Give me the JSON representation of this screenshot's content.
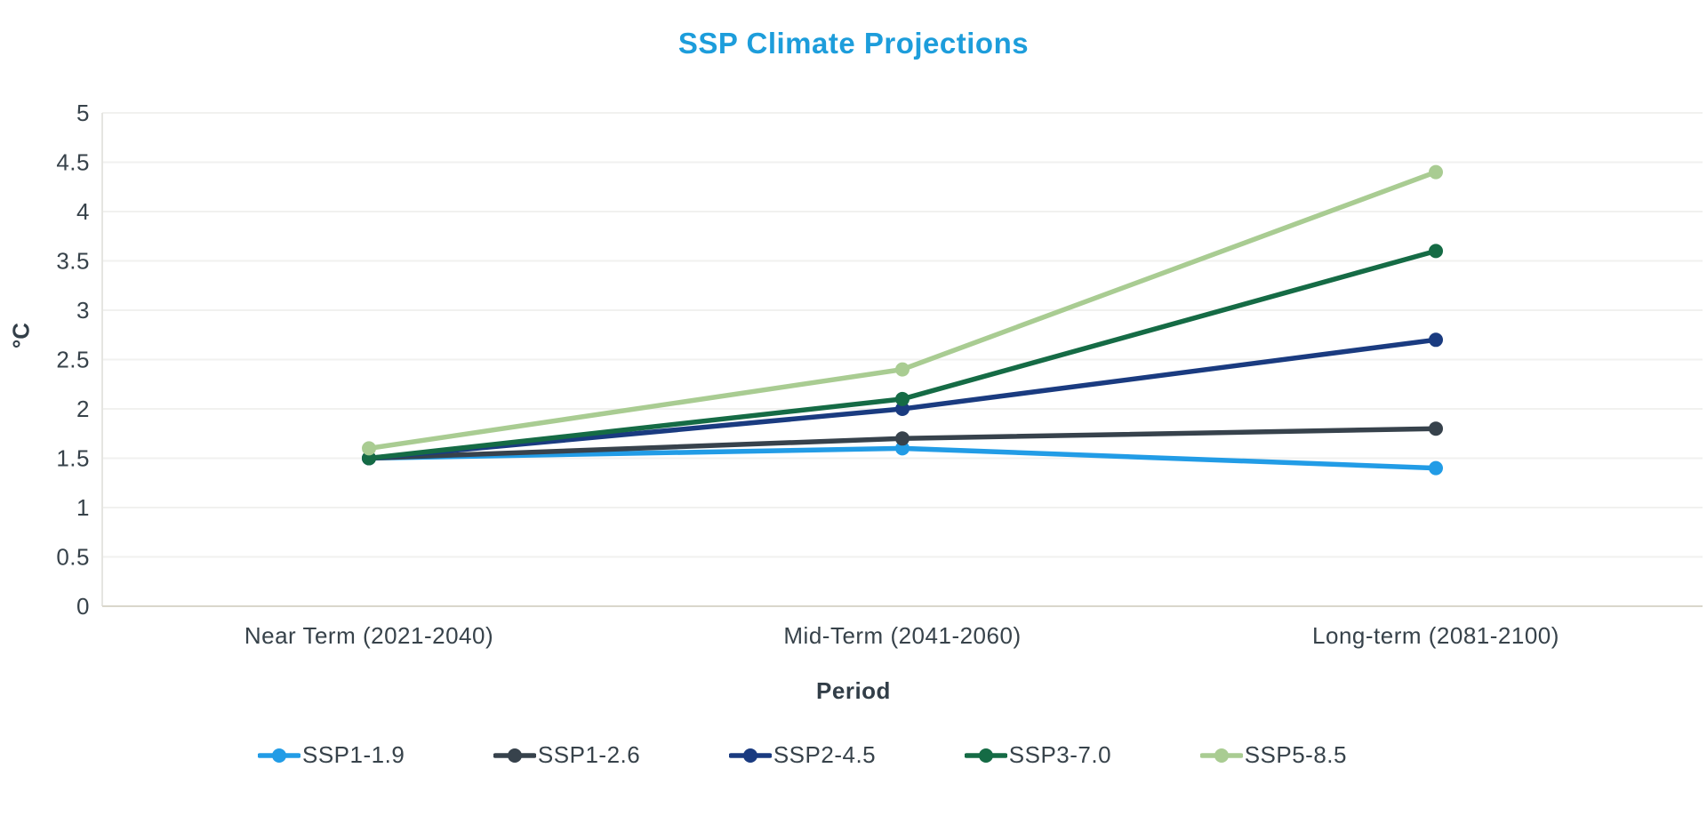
{
  "page": {
    "title": "SSP Climate Projections"
  },
  "chart_data": {
    "type": "line",
    "title": "SSP Climate Projections",
    "title_color": "#1d9ddb",
    "xlabel": "Period",
    "ylabel": "°C",
    "categories": [
      "Near Term (2021-2040)",
      "Mid-Term (2041-2060)",
      "Long-term (2081-2100)"
    ],
    "series": [
      {
        "name": "SSP1-1.9",
        "color": "#229ce6",
        "values": [
          1.5,
          1.6,
          1.4
        ]
      },
      {
        "name": "SSP1-2.6",
        "color": "#37424c",
        "values": [
          1.5,
          1.7,
          1.8
        ]
      },
      {
        "name": "SSP2-4.5",
        "color": "#1a3b80",
        "values": [
          1.5,
          2.0,
          2.7
        ]
      },
      {
        "name": "SSP3-7.0",
        "color": "#156b45",
        "values": [
          1.5,
          2.1,
          3.6
        ]
      },
      {
        "name": "SSP5-8.5",
        "color": "#a9cc92",
        "values": [
          1.6,
          2.4,
          4.4
        ]
      }
    ],
    "ylim": [
      0,
      5
    ],
    "yticks": [
      "0",
      "0.5",
      "1",
      "1.5",
      "2",
      "2.5",
      "3",
      "3.5",
      "4",
      "4.5",
      "5"
    ],
    "grid": true,
    "legend_position": "bottom",
    "text_color": "#37424a",
    "grid_color": "#f1f1ef",
    "axis_line_color": "#d9d7cb",
    "left_axis_line_color": "#e5e5e1"
  }
}
